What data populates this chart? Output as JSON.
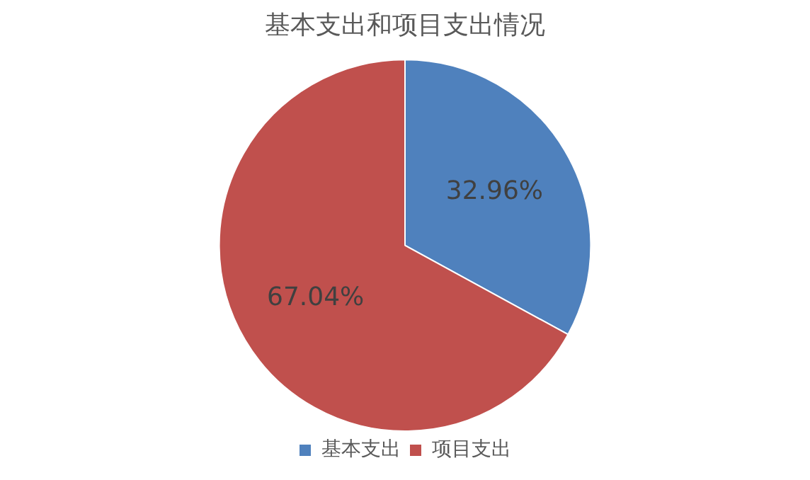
{
  "chart_data": {
    "type": "pie",
    "title": "基本支出和项目支出情况",
    "categories": [
      "基本支出",
      "项目支出"
    ],
    "values": [
      32.96,
      67.04
    ],
    "colors": [
      "#4f81bd",
      "#c0504d"
    ],
    "value_labels": [
      "32.96%",
      "67.04%"
    ],
    "legend": "bottom"
  }
}
